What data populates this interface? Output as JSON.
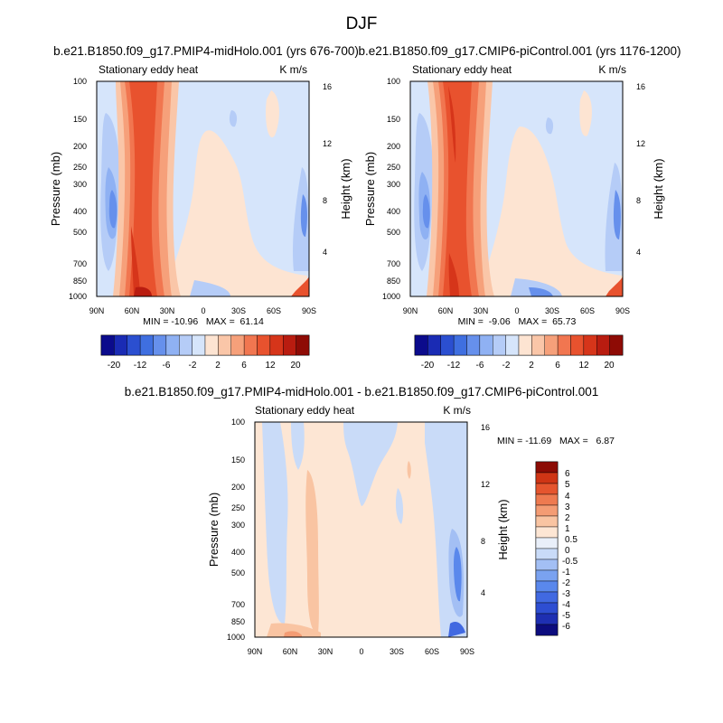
{
  "figure": {
    "title": "DJF"
  },
  "chart_data": [
    {
      "id": "p1",
      "type": "contour",
      "title": "b.e21.B1850.f09_g17.PMIP4-midHolo.001 (yrs 676-700)",
      "left_label": "Stationary eddy heat",
      "right_label": "K m/s",
      "ylabel": "Pressure (mb)",
      "y2label": "Height (km)",
      "x_ticks": [
        "90N",
        "60N",
        "30N",
        "0",
        "30S",
        "60S",
        "90S"
      ],
      "y_ticks": [
        "100",
        "150",
        "200",
        "250",
        "300",
        "400",
        "500",
        "700",
        "850",
        "1000"
      ],
      "y2_ticks": [
        "16",
        "12",
        "8",
        "4"
      ],
      "stats": "MIN = -10.96   MAX =  61.14",
      "colorbar_ticks": [
        "-20",
        "-12",
        "-6",
        "-2",
        "2",
        "6",
        "12",
        "20"
      ]
    },
    {
      "id": "p2",
      "type": "contour",
      "title": "b.e21.B1850.f09_g17.CMIP6-piControl.001 (yrs 1176-1200)",
      "left_label": "Stationary eddy heat",
      "right_label": "K m/s",
      "ylabel": "Pressure (mb)",
      "y2label": "Height (km)",
      "x_ticks": [
        "90N",
        "60N",
        "30N",
        "0",
        "30S",
        "60S",
        "90S"
      ],
      "y_ticks": [
        "100",
        "150",
        "200",
        "250",
        "300",
        "400",
        "500",
        "700",
        "850",
        "1000"
      ],
      "y2_ticks": [
        "16",
        "12",
        "8",
        "4"
      ],
      "stats": "MIN =  -9.06   MAX =  65.73",
      "colorbar_ticks": [
        "-20",
        "-12",
        "-6",
        "-2",
        "2",
        "6",
        "12",
        "20"
      ]
    },
    {
      "id": "p3",
      "type": "contour",
      "title": "b.e21.B1850.f09_g17.PMIP4-midHolo.001 - b.e21.B1850.f09_g17.CMIP6-piControl.001",
      "left_label": "Stationary eddy heat",
      "right_label": "K m/s",
      "ylabel": "Pressure (mb)",
      "y2label": "Height (km)",
      "x_ticks": [
        "90N",
        "60N",
        "30N",
        "0",
        "30S",
        "60S",
        "90S"
      ],
      "y_ticks": [
        "100",
        "150",
        "200",
        "250",
        "300",
        "400",
        "500",
        "700",
        "850",
        "1000"
      ],
      "y2_ticks": [
        "16",
        "12",
        "8",
        "4"
      ],
      "stats": "MIN = -11.69   MAX =   6.87",
      "colorbar_ticks": [
        "6",
        "5",
        "4",
        "3",
        "2",
        "1",
        "0.5",
        "0",
        "-0.5",
        "-1",
        "-2",
        "-3",
        "-4",
        "-5",
        "-6"
      ]
    }
  ],
  "colors": {
    "abs_palette": [
      "#0b0b8c",
      "#1a2bb4",
      "#2b4fd0",
      "#3f6fe0",
      "#6690ec",
      "#8fb1f3",
      "#b5ccf7",
      "#d6e5fb",
      "#fde4d2",
      "#fac6a8",
      "#f6a07a",
      "#f17650",
      "#e8522e",
      "#d6351a",
      "#b91c10",
      "#8e0b05"
    ],
    "diff_palette": [
      "#0c0c7e",
      "#1e2fb2",
      "#2e4ed2",
      "#4169e1",
      "#5a88ec",
      "#7aa2f0",
      "#a3bff4",
      "#c9dbf8",
      "#e9eff9",
      "#fde6d4",
      "#f9c4a2",
      "#f49c74",
      "#ee7a50",
      "#e5552e",
      "#cf3515",
      "#8c0c05"
    ]
  }
}
